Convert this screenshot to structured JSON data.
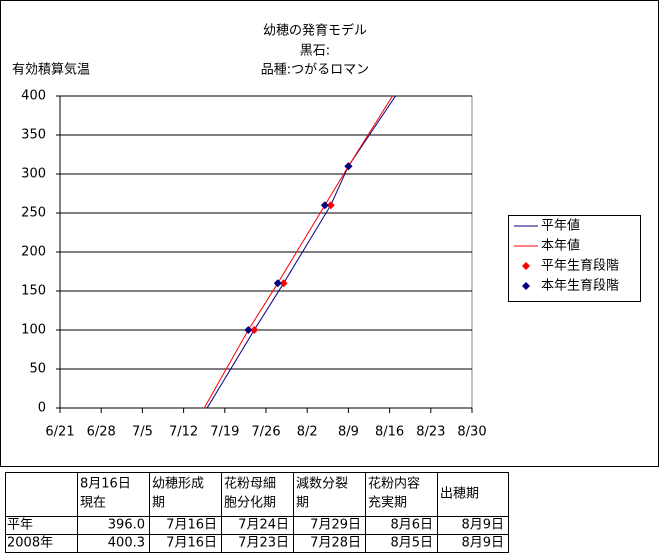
{
  "chart_data": {
    "type": "line",
    "title": [
      "幼穂の発育モデル",
      "黒石:",
      "品種:つがるロマン"
    ],
    "y_label": "有効積算気温",
    "xlim": [
      172,
      242
    ],
    "xticks": [
      {
        "value": 172,
        "label": "6/21"
      },
      {
        "value": 179,
        "label": "6/28"
      },
      {
        "value": 186,
        "label": "7/5"
      },
      {
        "value": 193,
        "label": "7/12"
      },
      {
        "value": 200,
        "label": "7/19"
      },
      {
        "value": 207,
        "label": "7/26"
      },
      {
        "value": 214,
        "label": "8/2"
      },
      {
        "value": 221,
        "label": "8/9"
      },
      {
        "value": 228,
        "label": "8/16"
      },
      {
        "value": 235,
        "label": "8/23"
      },
      {
        "value": 242,
        "label": "8/30"
      }
    ],
    "ylim": [
      0,
      400
    ],
    "yticks": [
      0,
      50,
      100,
      150,
      200,
      250,
      300,
      350,
      400
    ],
    "grid": true,
    "legend": "right",
    "series": [
      {
        "name": "平年値",
        "kind": "line",
        "color": "#000080",
        "x": [
          197,
          205,
          210,
          218,
          221,
          229
        ],
        "values": [
          0,
          100,
          160,
          260,
          310,
          400
        ]
      },
      {
        "name": "本年値",
        "kind": "line",
        "color": "#ff0000",
        "x": [
          196.5,
          204,
          209,
          217,
          221,
          228.5
        ],
        "values": [
          0,
          100,
          160,
          260,
          310,
          400
        ]
      },
      {
        "name": "平年生育段階",
        "kind": "marker",
        "color": "#ff0000",
        "x": [
          205,
          210,
          218,
          221
        ],
        "values": [
          100,
          160,
          260,
          310
        ]
      },
      {
        "name": "本年生育段階",
        "kind": "marker",
        "color": "#000080",
        "x": [
          204,
          209,
          217,
          221
        ],
        "values": [
          100,
          160,
          260,
          310
        ]
      }
    ]
  },
  "table": {
    "header": [
      [],
      [
        "8月16日",
        "現在"
      ],
      [
        "幼穂形成",
        "期"
      ],
      [
        "花粉母細",
        "胞分化期"
      ],
      [
        "減数分裂",
        "期"
      ],
      [
        "花粉内容",
        "充実期"
      ],
      [
        "出穂期"
      ]
    ],
    "rows": [
      [
        "平年",
        "396.0",
        "7月16日",
        "7月24日",
        "7月29日",
        "8月6日",
        "8月9日"
      ],
      [
        "2008年",
        "400.3",
        "7月16日",
        "7月23日",
        "7月28日",
        "8月5日",
        "8月9日"
      ]
    ]
  }
}
